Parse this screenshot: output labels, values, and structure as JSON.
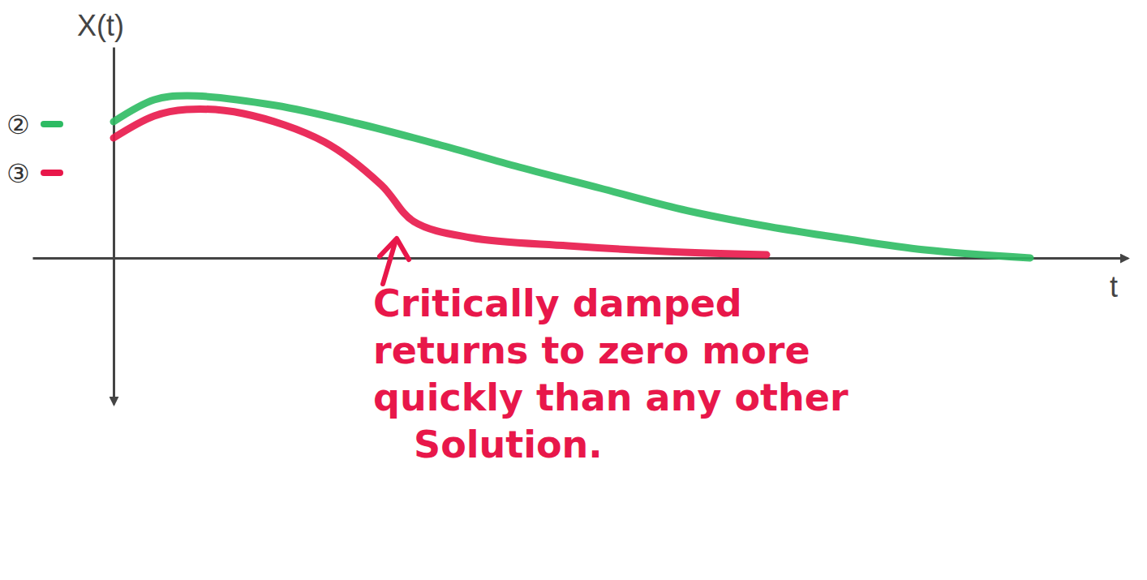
{
  "chart_data": {
    "type": "line",
    "y_label": "X(t)",
    "x_label": "t",
    "xlim": [
      -1,
      12.5
    ],
    "ylim": [
      -1.8,
      2.6
    ],
    "tick_labels": false,
    "grid": false,
    "legend": "left",
    "series": [
      {
        "name": "②",
        "color": "#2dbb63",
        "x": [
          0,
          0.5,
          0.9,
          2,
          3,
          4,
          5,
          6,
          7,
          8,
          9,
          10,
          11.3
        ],
        "values": [
          1.68,
          1.95,
          2.0,
          1.88,
          1.66,
          1.4,
          1.12,
          0.86,
          0.6,
          0.4,
          0.24,
          0.1,
          0.0
        ]
      },
      {
        "name": "③",
        "color": "#e8174a",
        "x": [
          0,
          0.5,
          0.9,
          1.6,
          2.6,
          3.3,
          3.7,
          4.4,
          5.6,
          6.8,
          8.05
        ],
        "values": [
          1.48,
          1.75,
          1.83,
          1.78,
          1.43,
          0.9,
          0.45,
          0.25,
          0.15,
          0.08,
          0.04
        ]
      }
    ],
    "annotations": [
      {
        "text": [
          "Critically damped",
          "returns to zero more",
          "quickly than any other",
          "Solution."
        ],
        "x": 3.5,
        "y": 0.28,
        "color": "#e8174a"
      }
    ]
  }
}
